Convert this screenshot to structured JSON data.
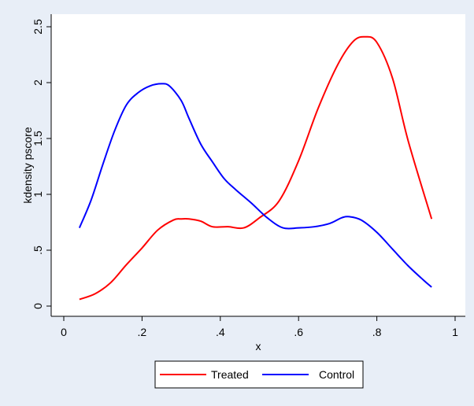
{
  "chart_data": {
    "type": "line",
    "title": "",
    "xlabel": "x",
    "ylabel": "kdensity pscore",
    "xlim": [
      0,
      1
    ],
    "ylim": [
      0,
      2.5
    ],
    "x_ticks": [
      0,
      0.2,
      0.4,
      0.6,
      0.8,
      1
    ],
    "x_tick_labels": [
      "0",
      ".2",
      ".4",
      ".6",
      ".8",
      "1"
    ],
    "y_ticks": [
      0,
      0.5,
      1,
      1.5,
      2,
      2.5
    ],
    "y_tick_labels": [
      "0",
      ".5",
      "1",
      "1.5",
      "2",
      "2.5"
    ],
    "grid": false,
    "legend_position": "bottom",
    "series": [
      {
        "name": "Treated",
        "color": "#ff0000",
        "x": [
          0.04,
          0.08,
          0.12,
          0.16,
          0.2,
          0.24,
          0.28,
          0.3,
          0.32,
          0.35,
          0.38,
          0.42,
          0.46,
          0.5,
          0.55,
          0.6,
          0.65,
          0.7,
          0.74,
          0.77,
          0.8,
          0.84,
          0.88,
          0.94
        ],
        "y": [
          0.06,
          0.11,
          0.21,
          0.37,
          0.52,
          0.68,
          0.77,
          0.78,
          0.78,
          0.76,
          0.71,
          0.71,
          0.7,
          0.79,
          0.94,
          1.3,
          1.77,
          2.16,
          2.37,
          2.41,
          2.36,
          2.04,
          1.48,
          0.78
        ]
      },
      {
        "name": "Control",
        "color": "#0000ff",
        "x": [
          0.04,
          0.07,
          0.1,
          0.13,
          0.16,
          0.19,
          0.22,
          0.25,
          0.27,
          0.3,
          0.32,
          0.35,
          0.38,
          0.41,
          0.44,
          0.48,
          0.52,
          0.56,
          0.6,
          0.64,
          0.68,
          0.71,
          0.73,
          0.76,
          0.8,
          0.84,
          0.88,
          0.92,
          0.94
        ],
        "y": [
          0.7,
          0.95,
          1.27,
          1.57,
          1.8,
          1.91,
          1.97,
          1.99,
          1.97,
          1.84,
          1.68,
          1.45,
          1.29,
          1.14,
          1.04,
          0.92,
          0.79,
          0.7,
          0.7,
          0.71,
          0.74,
          0.79,
          0.8,
          0.77,
          0.66,
          0.51,
          0.36,
          0.23,
          0.17
        ]
      }
    ]
  }
}
